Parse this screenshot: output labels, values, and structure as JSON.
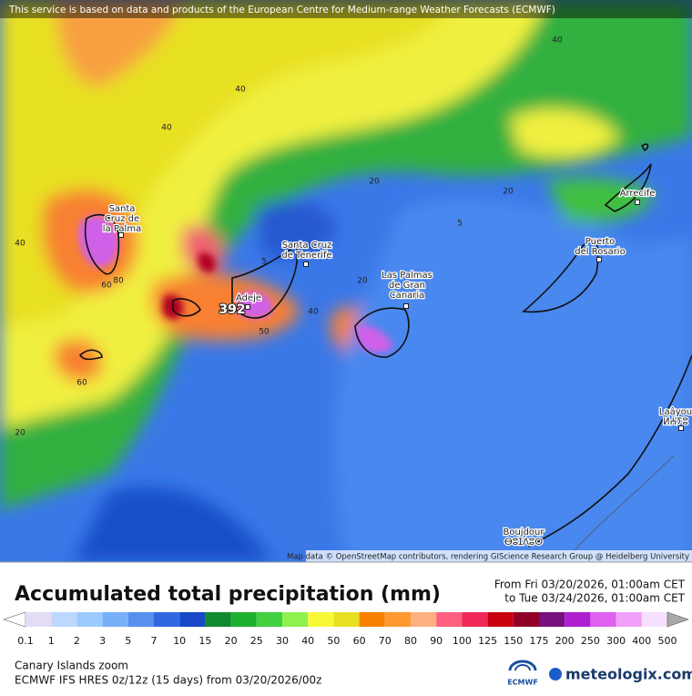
{
  "header": {
    "notice": "This service is based on data and products of the European Centre for Medium-range Weather Forecasts (ECMWF)"
  },
  "map": {
    "places": [
      {
        "lines": [
          "Santa",
          "Cruz de",
          "la Palma"
        ]
      },
      {
        "lines": [
          "Santa Cruz",
          "de Tenerife"
        ]
      },
      {
        "lines": [
          "Las Palmas",
          "de Gran",
          "Canaria"
        ]
      },
      {
        "lines": [
          "Puerto",
          "del Rosario"
        ]
      },
      {
        "lines": [
          "Arrecife"
        ]
      },
      {
        "lines": [
          "Laâyou",
          "ⵍⵄⵢⵓ"
        ]
      },
      {
        "lines": [
          "Boujdour",
          "ⴱⵓⵊⴷⵓⵔ"
        ]
      },
      {
        "lines": [
          "Adeje"
        ]
      }
    ],
    "contour_labels": [
      "40",
      "40",
      "40",
      "40",
      "20",
      "20",
      "5",
      "5",
      "20",
      "40",
      "60",
      "80",
      "60",
      "20",
      "50"
    ],
    "max_value": "392",
    "attribution": "Map data © OpenStreetMap contributors, rendering GIScience Research Group @ Heidelberg University"
  },
  "legend": {
    "title": "Accumulated total precipitation (mm)",
    "from": "From Fri 03/20/2026, 01:00am CET",
    "to": "to Tue 03/24/2026, 01:00am CET",
    "labels": [
      "0.1",
      "1",
      "2",
      "3",
      "5",
      "7",
      "10",
      "15",
      "20",
      "25",
      "30",
      "40",
      "50",
      "60",
      "70",
      "80",
      "90",
      "100",
      "125",
      "150",
      "175",
      "200",
      "250",
      "300",
      "400",
      "500"
    ],
    "colors": [
      "#ffffff",
      "#e4dcf4",
      "#bcd8ff",
      "#9ccaff",
      "#78b0f8",
      "#5890f0",
      "#3068e0",
      "#1848c8",
      "#108a30",
      "#20b030",
      "#40d040",
      "#90f050",
      "#f8f838",
      "#e8e020",
      "#f88000",
      "#ff9830",
      "#ffb080",
      "#ff6080",
      "#f02858",
      "#c80010",
      "#900028",
      "#781080",
      "#b020d0",
      "#e060f0",
      "#f0a0f8",
      "#f8e0ff",
      "#d8d8d8",
      "#a8a8a8"
    ]
  },
  "footer": {
    "region": "Canary Islands zoom",
    "model": "ECMWF IFS HRES 0z/12z (15 days) from  03/20/2026/00z",
    "ecmwf": "ECMWF",
    "brand": "meteologix.com"
  }
}
